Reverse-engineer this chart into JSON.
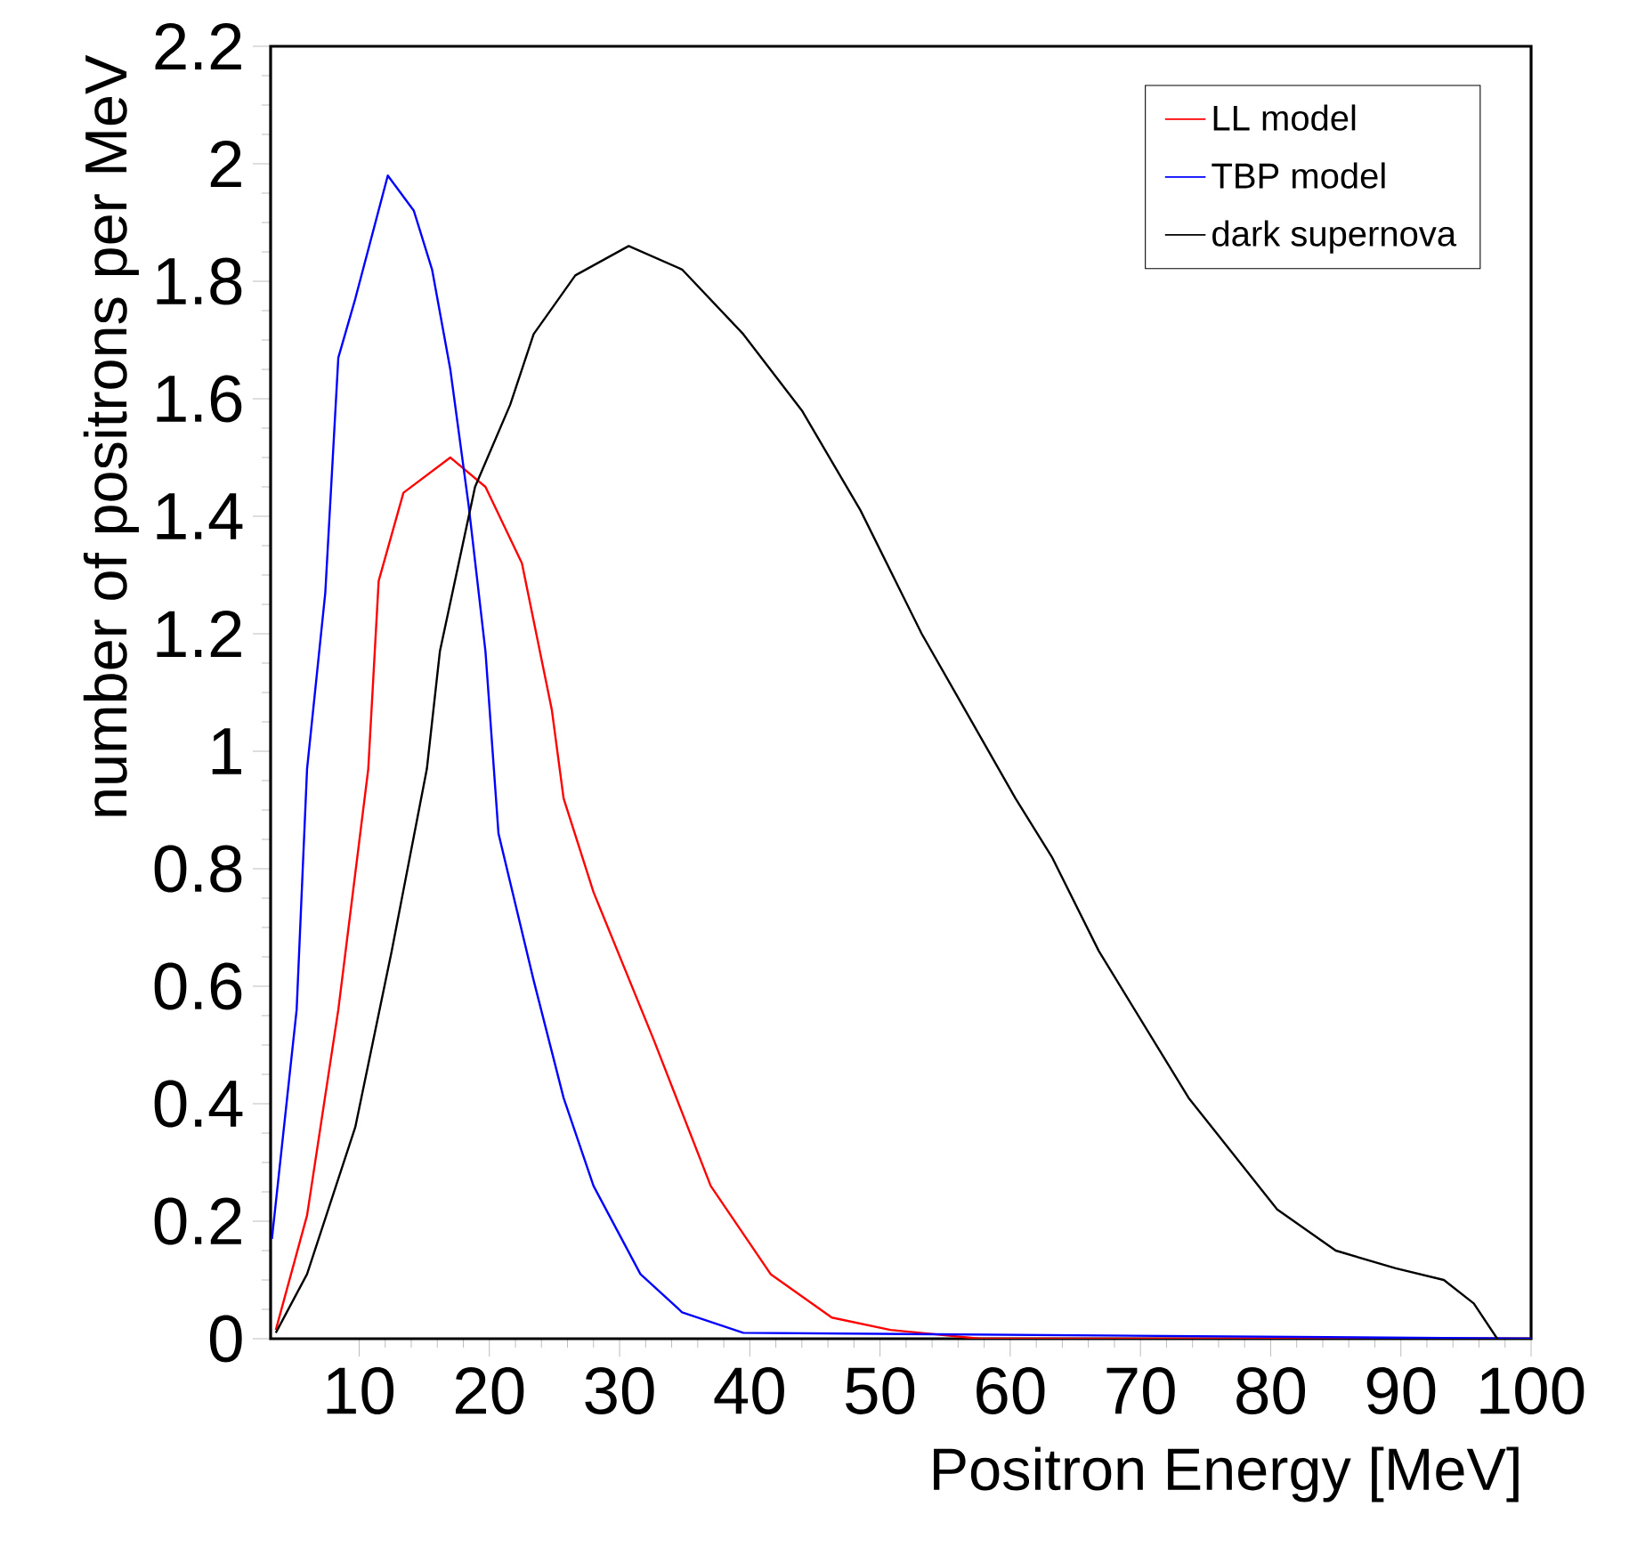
{
  "chart_data": {
    "type": "line",
    "xlabel": "Positron Energy [MeV]",
    "ylabel": "number of positrons per MeV",
    "xlim": [
      3.2,
      100
    ],
    "ylim": [
      0,
      2.2
    ],
    "xticks": [
      10,
      20,
      30,
      40,
      50,
      60,
      70,
      80,
      90,
      100
    ],
    "yticks": [
      0,
      0.2,
      0.4,
      0.6,
      0.8,
      1,
      1.2,
      1.4,
      1.6,
      1.8,
      2,
      2.2
    ],
    "legend": "top right",
    "marker": "none",
    "line_style": "solid",
    "grid": false,
    "series": [
      {
        "name": "LL model",
        "color": "#ff0000",
        "x": [
          3.6,
          6,
          8.4,
          10.7,
          11.5,
          13.4,
          17,
          19.7,
          22.5,
          24.8,
          25.7,
          28,
          32.6,
          37,
          41.6,
          46.3,
          50.8,
          57.7,
          100
        ],
        "values": [
          0.015,
          0.21,
          0.56,
          0.97,
          1.29,
          1.44,
          1.5,
          1.45,
          1.32,
          1.07,
          0.92,
          0.76,
          0.51,
          0.26,
          0.11,
          0.036,
          0.015,
          0,
          0
        ]
      },
      {
        "name": "TBP model",
        "color": "#0000ff",
        "x": [
          3.3,
          5.2,
          6,
          7.4,
          8.4,
          9.7,
          12.2,
          14.2,
          15.6,
          17,
          18.4,
          19.7,
          20.7,
          23.4,
          25.7,
          28,
          31.6,
          34.8,
          39.5,
          100
        ],
        "values": [
          0.17,
          0.56,
          0.97,
          1.27,
          1.67,
          1.77,
          1.98,
          1.92,
          1.82,
          1.65,
          1.42,
          1.17,
          0.86,
          0.61,
          0.41,
          0.26,
          0.11,
          0.045,
          0.01,
          0
        ]
      },
      {
        "name": "dark supernova",
        "color": "#000000",
        "x": [
          3.6,
          6,
          9.7,
          12.5,
          15.2,
          16.2,
          18.9,
          21.6,
          23.4,
          26.6,
          30.7,
          34.8,
          39.5,
          44,
          48.5,
          53.2,
          60.4,
          63.2,
          66.8,
          73.7,
          80.5,
          85,
          89.6,
          93.3,
          95.6,
          97.4
        ],
        "values": [
          0.01,
          0.11,
          0.36,
          0.66,
          0.97,
          1.17,
          1.45,
          1.59,
          1.71,
          1.81,
          1.86,
          1.82,
          1.71,
          1.58,
          1.41,
          1.2,
          0.92,
          0.82,
          0.66,
          0.41,
          0.22,
          0.15,
          0.12,
          0.1,
          0.06,
          0
        ]
      }
    ]
  }
}
